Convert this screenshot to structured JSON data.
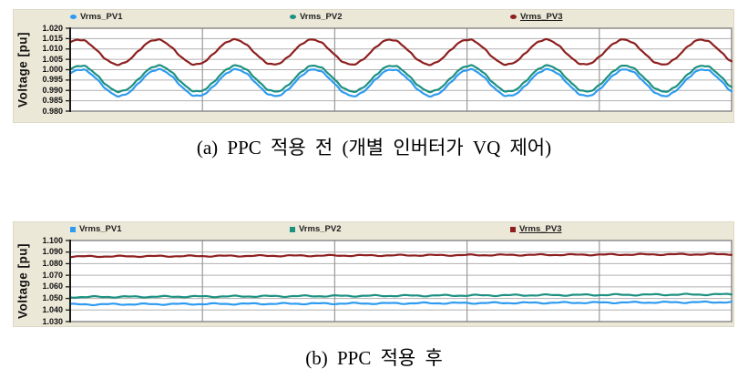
{
  "captions": {
    "a": "(a) PPC 적용 전 (개별 인버터가 VQ 제어)",
    "b": "(b) PPC 적용 후"
  },
  "axis": {
    "ylabel": "Voltage [pu]"
  },
  "colors": {
    "pv1_blue": "#2e9bf0",
    "pv2_teal": "#1d9181",
    "pv3_dark_red": "#8e1f1f",
    "panel_background": "#ece8d8",
    "grid_horizontal": "#b0b0b0",
    "grid_vertical": "#9a9a9a",
    "plot_border": "#858585",
    "axis_line": "#1a1a1a"
  },
  "chart_data": [
    {
      "type": "line",
      "title": "",
      "xlabel": "",
      "ylabel": "Voltage [pu]",
      "ylim": [
        0.98,
        1.02
      ],
      "yticks": [
        "1.020",
        "1.015",
        "1.010",
        "1.005",
        "1.000",
        "0.995",
        "0.990",
        "0.985",
        "0.980"
      ],
      "grid": true,
      "x_divisions": 5,
      "legend_position": "top",
      "legend_marker": "circle",
      "series": [
        {
          "name": "Vrms_PV1",
          "color": "#2e9bf0",
          "shape": "wave",
          "mean": 0.9937,
          "amp": 0.0064,
          "cycles": 8.5,
          "phase": 0.115,
          "ripple": 0.00022,
          "approx_min": 0.9873,
          "approx_max": 1.0001,
          "underline": false
        },
        {
          "name": "Vrms_PV2",
          "color": "#1d9181",
          "shape": "wave",
          "mean": 0.9957,
          "amp": 0.00625,
          "cycles": 8.5,
          "phase": 0.115,
          "ripple": 0.00022,
          "approx_min": 0.9895,
          "approx_max": 1.002,
          "underline": false
        },
        {
          "name": "Vrms_PV3",
          "color": "#8e1f1f",
          "shape": "wave",
          "mean": 1.0085,
          "amp": 0.006,
          "cycles": 8.5,
          "phase": 0.136,
          "ripple": 0.0002,
          "approx_min": 1.0025,
          "approx_max": 1.0145,
          "underline": true
        }
      ]
    },
    {
      "type": "line",
      "title": "",
      "xlabel": "",
      "ylabel": "Voltage [pu]",
      "ylim": [
        1.03,
        1.1
      ],
      "yticks": [
        "1.100",
        "1.090",
        "1.080",
        "1.070",
        "1.060",
        "1.050",
        "1.040",
        "1.030"
      ],
      "grid": true,
      "x_divisions": 5,
      "legend_position": "top",
      "legend_marker": "square",
      "series": [
        {
          "name": "Vrms_PV1",
          "color": "#2e9bf0",
          "shape": "trend",
          "start": 1.0448,
          "end": 1.0468,
          "ripple": 0.00045,
          "seed": 0.1,
          "underline": false
        },
        {
          "name": "Vrms_PV2",
          "color": "#1d9181",
          "shape": "trend",
          "start": 1.0512,
          "end": 1.0535,
          "ripple": 0.00045,
          "seed": 0.55,
          "underline": false
        },
        {
          "name": "Vrms_PV3",
          "color": "#8e1f1f",
          "shape": "trend",
          "start": 1.0862,
          "end": 1.0882,
          "ripple": 0.0004,
          "seed": 0.8,
          "underline": true
        }
      ]
    }
  ]
}
